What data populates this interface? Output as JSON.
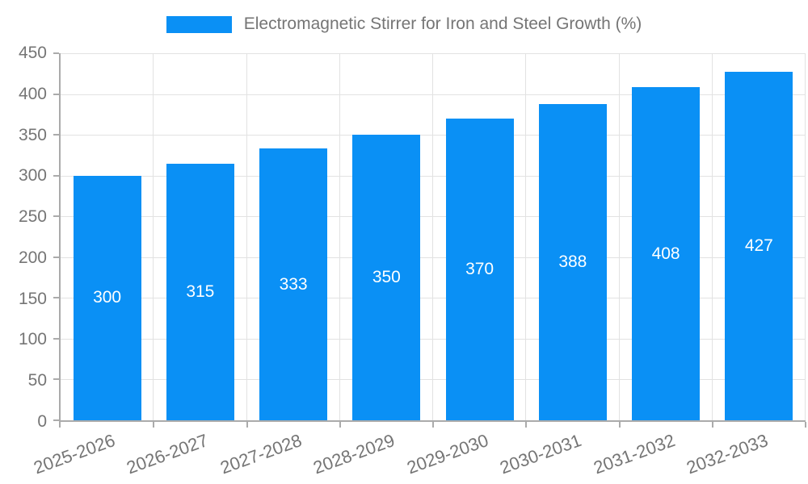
{
  "legend": {
    "label": "Electromagnetic Stirrer for Iron and Steel Growth (%)"
  },
  "colors": {
    "bar": "#0a90f5",
    "grid": "#e2e2e2",
    "axis": "#ababab",
    "tick_text": "#757575",
    "value_label": "#ffffff",
    "background": "#ffffff"
  },
  "chart_data": {
    "type": "bar",
    "title": "Electromagnetic Stirrer for Iron and Steel Growth (%)",
    "categories": [
      "2025-2026",
      "2026-2027",
      "2027-2028",
      "2028-2029",
      "2029-2030",
      "2030-2031",
      "2031-2032",
      "2032-2033"
    ],
    "values": [
      300,
      315,
      333,
      350,
      370,
      388,
      408,
      427
    ],
    "xlabel": "",
    "ylabel": "",
    "ylim": [
      0,
      450
    ],
    "yticks": [
      0,
      50,
      100,
      150,
      200,
      250,
      300,
      350,
      400,
      450
    ],
    "grid": true,
    "legend_position": "top-center",
    "value_labels": "inside-center",
    "bar_color": "#0a90f5",
    "x_label_rotation_deg": -20
  }
}
